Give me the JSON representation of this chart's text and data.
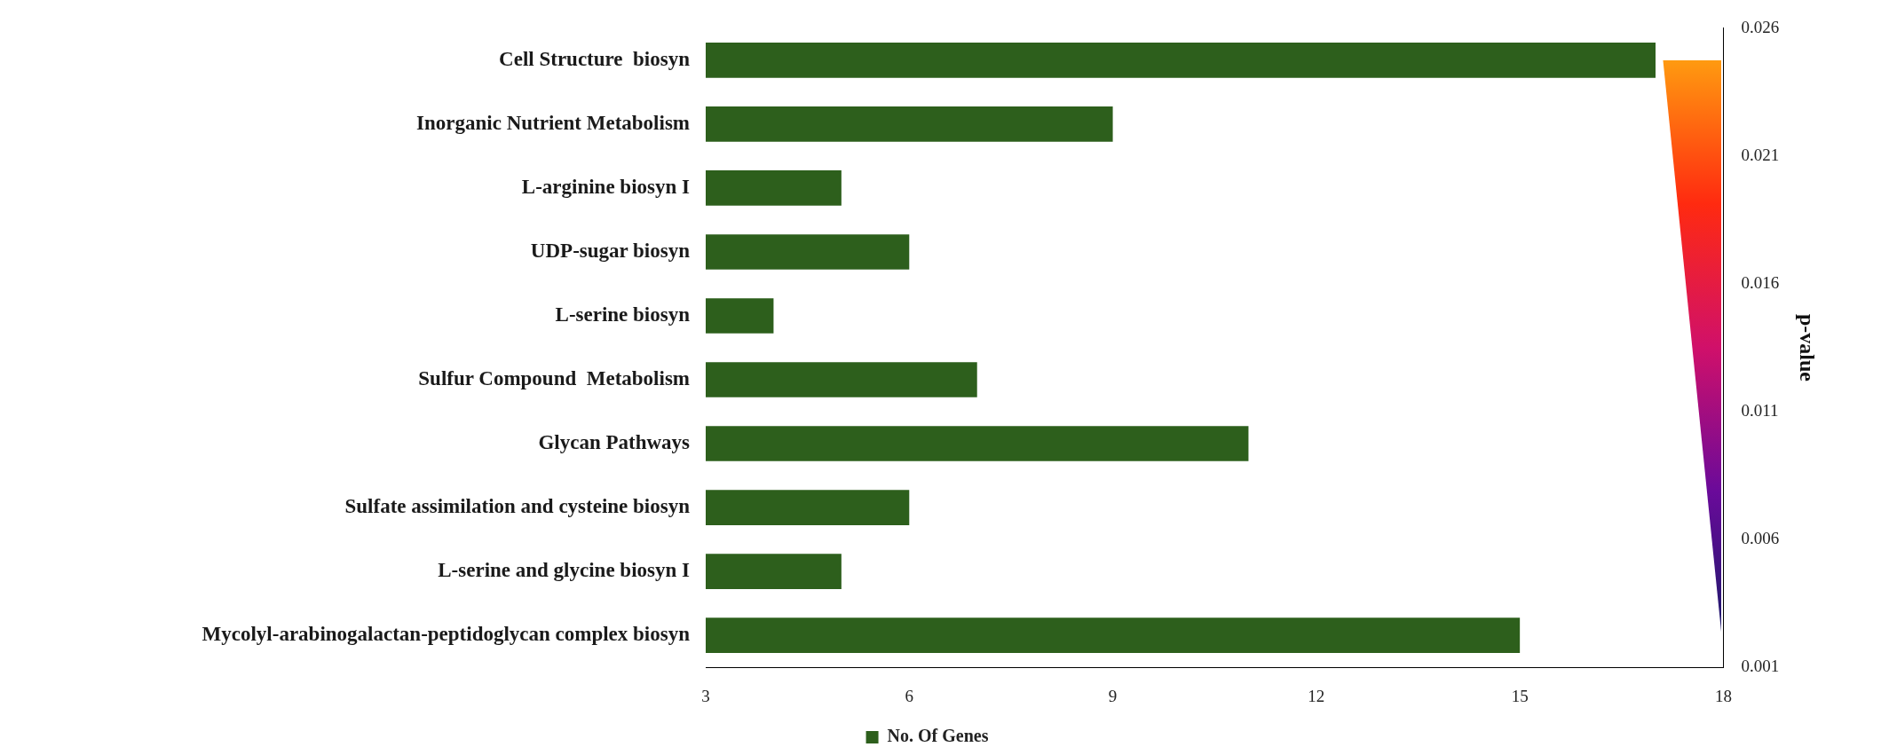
{
  "chart_data": {
    "type": "bar",
    "orientation": "horizontal",
    "categories": [
      "Cell Structure  biosyn",
      "Inorganic Nutrient Metabolism",
      "L-arginine biosyn I",
      "UDP-sugar biosyn",
      "L-serine biosyn",
      "Sulfur Compound  Metabolism",
      "Glycan Pathways",
      "Sulfate assimilation and cysteine biosyn",
      "L-serine and glycine biosyn I",
      "Mycolyl-arabinogalactan-peptidoglycan complex biosyn"
    ],
    "series": [
      {
        "name": "No. Of Genes",
        "color": "#2d5f1c",
        "values": [
          17,
          9,
          5,
          6,
          4,
          7,
          11,
          6,
          5,
          15
        ]
      }
    ],
    "xlim": [
      3,
      18
    ],
    "xticks": [
      3,
      6,
      9,
      12,
      15,
      18
    ],
    "y2label": "p-value",
    "y2lim": [
      0.001,
      0.026
    ],
    "y2ticks": [
      0.001,
      0.006,
      0.011,
      0.016,
      0.021,
      0.026
    ],
    "legend": "bottom",
    "grid": false
  }
}
